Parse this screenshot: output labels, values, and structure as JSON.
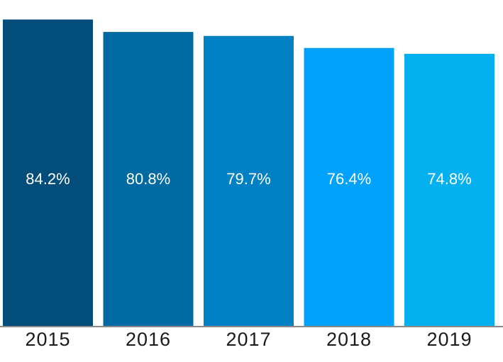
{
  "chart_data": {
    "type": "bar",
    "title": "",
    "xlabel": "",
    "ylabel": "",
    "categories": [
      "2015",
      "2016",
      "2017",
      "2018",
      "2019"
    ],
    "values": [
      84.2,
      80.8,
      79.7,
      76.4,
      74.8
    ],
    "value_labels": [
      "84.2%",
      "80.8%",
      "79.7%",
      "76.4%",
      "74.8%"
    ],
    "colors": [
      "#024d7a",
      "#026aa3",
      "#0180c4",
      "#00a2fc",
      "#05b0ef"
    ],
    "ylim": [
      0,
      88
    ],
    "grid": false,
    "legend": "none"
  }
}
